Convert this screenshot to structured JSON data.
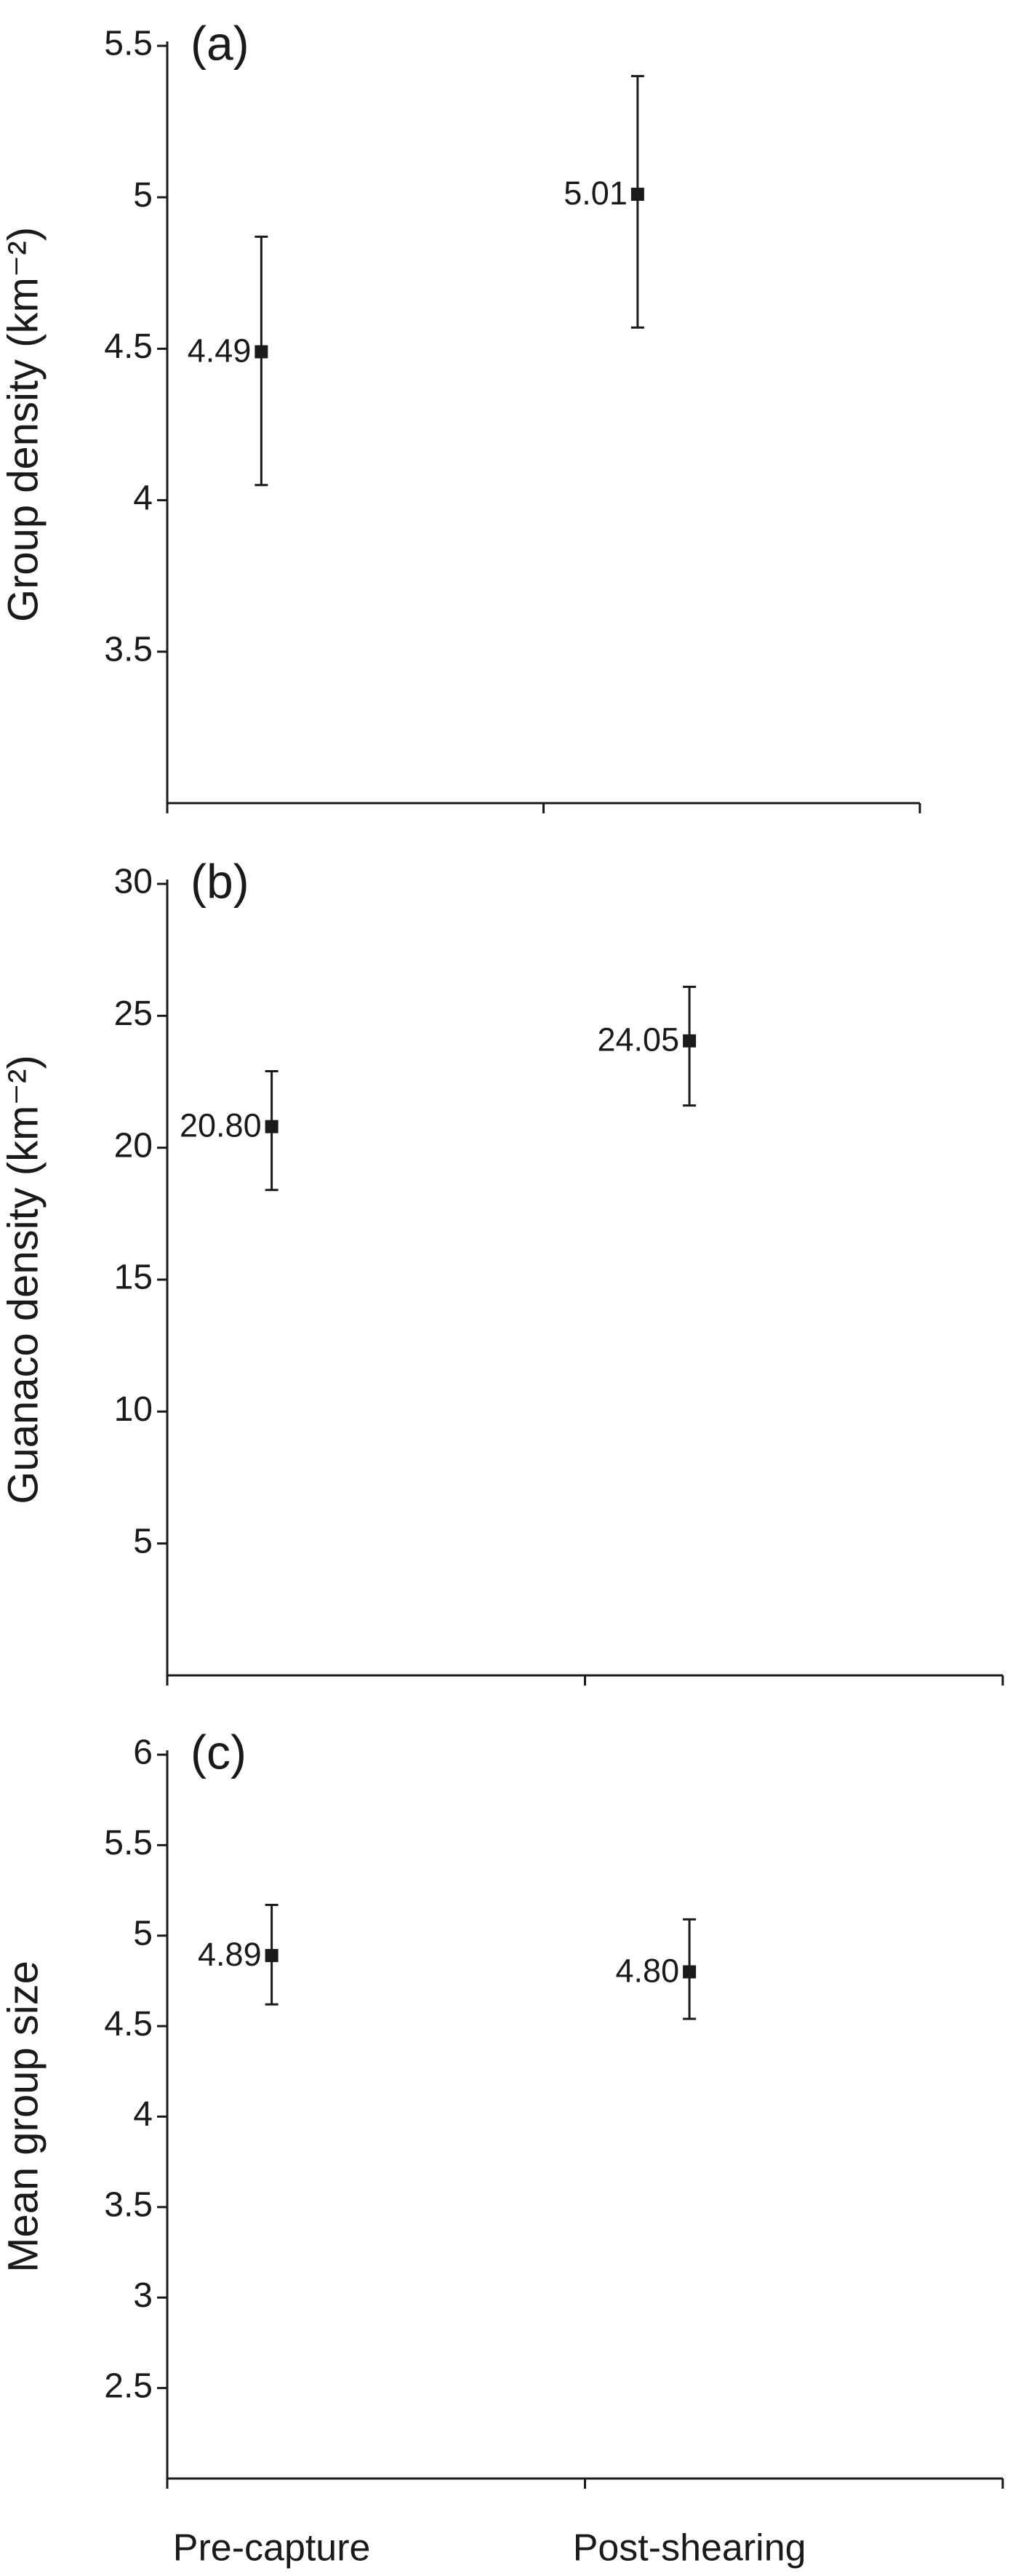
{
  "chart_data": [
    {
      "type": "errorbar",
      "title": "(a)",
      "y_label": "Group density (km⁻²)",
      "values": [
        4.49,
        5.01
      ],
      "value_labels": [
        "4.49",
        "5.01"
      ],
      "upper": [
        4.87,
        5.4
      ],
      "lower": [
        4.05,
        4.57
      ],
      "ylim": [
        3,
        5.5
      ],
      "yticks": [
        3.5,
        4,
        4.5,
        5,
        5.5
      ],
      "color": "#1a1a1a"
    },
    {
      "type": "errorbar",
      "title": "(b)",
      "y_label": "Guanaco density (km⁻²)",
      "values": [
        20.8,
        24.05
      ],
      "value_labels": [
        "20.80",
        "24.05"
      ],
      "upper": [
        22.9,
        26.1
      ],
      "lower": [
        18.4,
        21.6
      ],
      "ylim": [
        0,
        30
      ],
      "yticks": [
        5,
        10,
        15,
        20,
        25,
        30
      ],
      "color": "#1a1a1a"
    },
    {
      "type": "errorbar",
      "title": "(c)",
      "y_label": "Mean group size",
      "categories": [
        "Pre-capture",
        "Post-shearing"
      ],
      "values": [
        4.89,
        4.8
      ],
      "value_labels": [
        "4.89",
        "4.80"
      ],
      "upper": [
        5.17,
        5.09
      ],
      "lower": [
        4.62,
        4.54
      ],
      "ylim": [
        2,
        6
      ],
      "yticks": [
        2.5,
        3,
        3.5,
        4,
        4.5,
        5,
        5.5,
        6
      ],
      "color": "#1a1a1a"
    }
  ]
}
